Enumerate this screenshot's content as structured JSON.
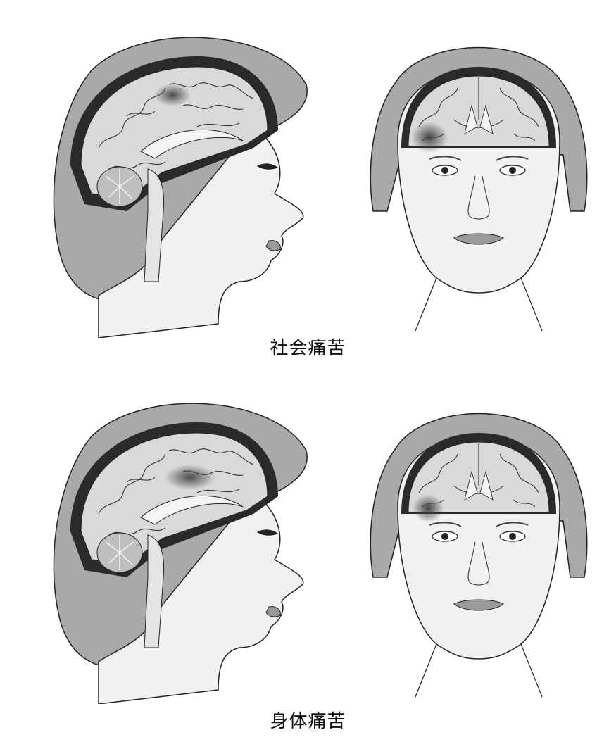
{
  "figure": {
    "rows": [
      {
        "id": "social",
        "caption": "社会痛苦"
      },
      {
        "id": "physical",
        "caption": "身体痛苦"
      }
    ],
    "colors": {
      "skin": "#f1f1f1",
      "hair": "#a9a9a9",
      "brain": "#d9d9d9",
      "gyri": "#ececec",
      "outline": "#222222",
      "activation": "#5c5c5c",
      "skull_dark": "#2a2a2a"
    }
  }
}
